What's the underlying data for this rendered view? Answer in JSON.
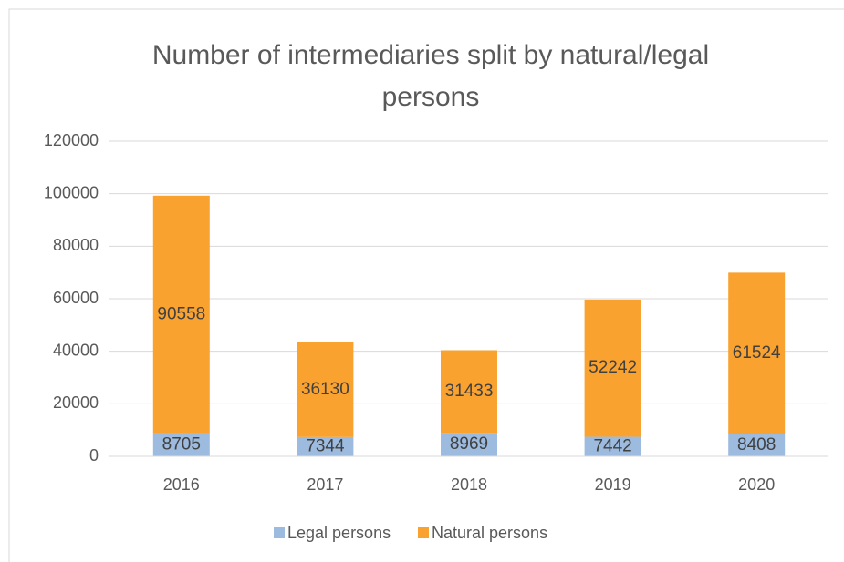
{
  "chart_data": {
    "type": "stacked_bar",
    "title": "Number of intermediaries split by natural/legal persons",
    "categories": [
      "2016",
      "2017",
      "2018",
      "2019",
      "2020"
    ],
    "series": [
      {
        "name": "Legal persons",
        "color": "#9dbbdf",
        "values": [
          8705,
          7344,
          8969,
          7442,
          8408
        ]
      },
      {
        "name": "Natural persons",
        "color": "#f9a230",
        "values": [
          90558,
          36130,
          31433,
          52242,
          61524
        ]
      }
    ],
    "ylim": [
      0,
      120000
    ],
    "yticks": [
      0,
      20000,
      40000,
      60000,
      80000,
      100000,
      120000
    ],
    "grid": true,
    "legend": "bottom"
  }
}
